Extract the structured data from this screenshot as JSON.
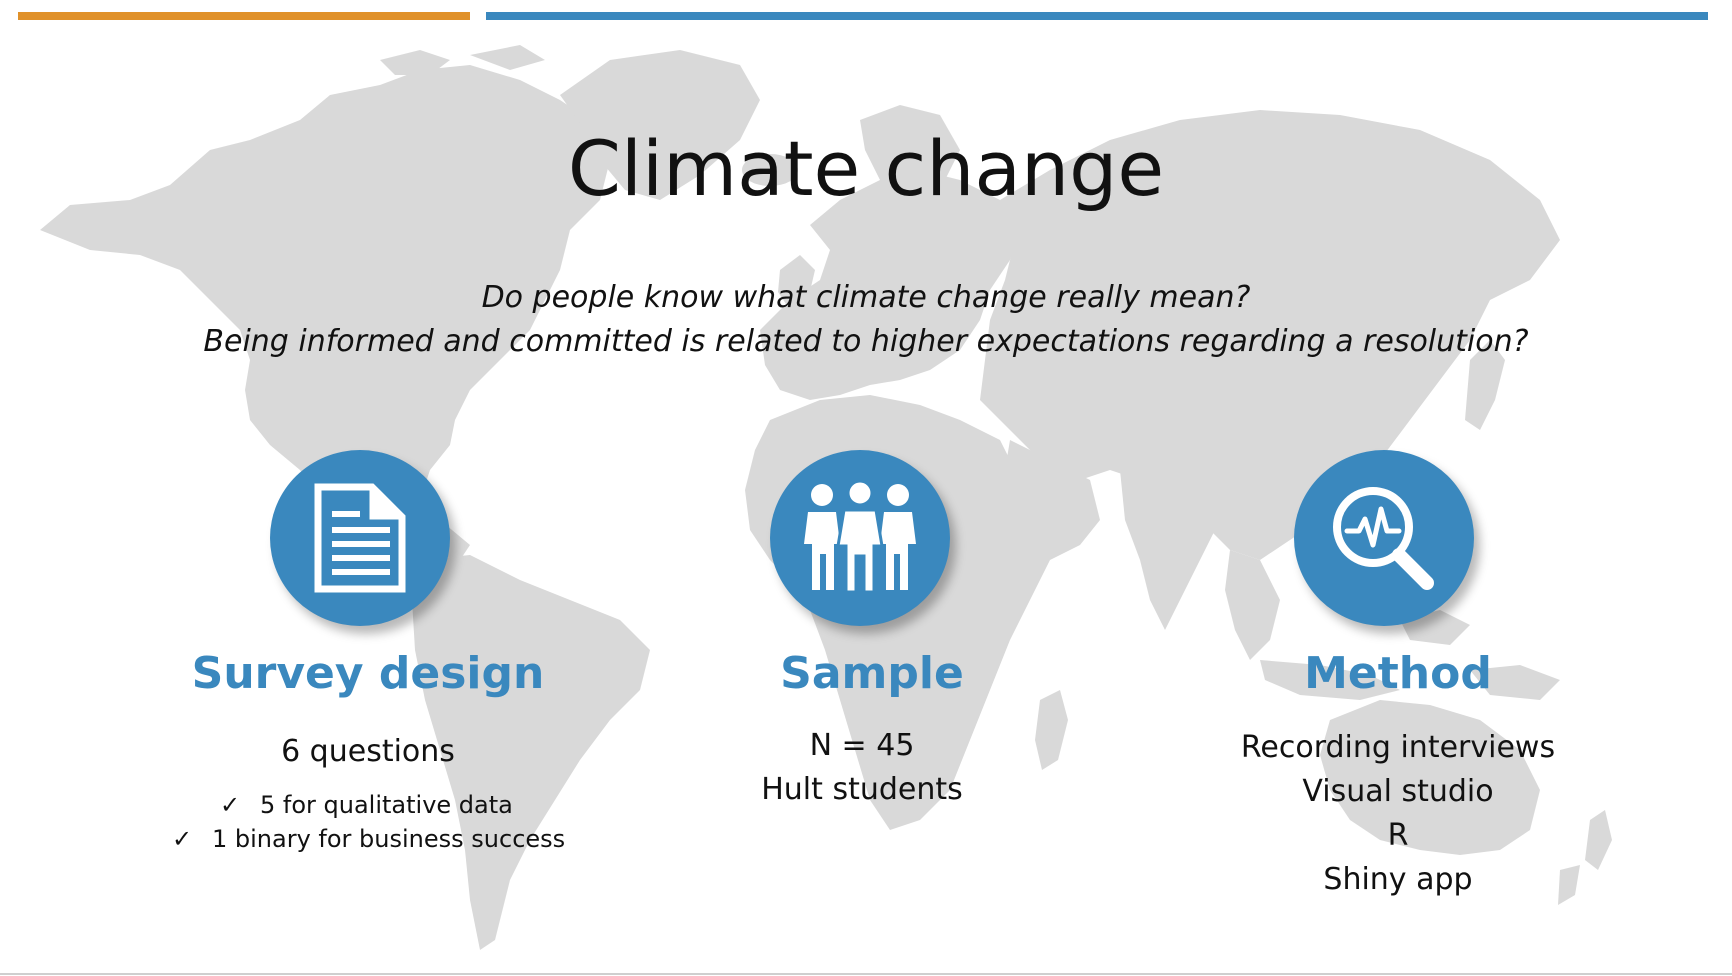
{
  "slide": {
    "title": "Climate change",
    "questions": [
      "Do people know what climate change really mean?",
      "Being informed and committed is related to higher expectations regarding a resolution?"
    ]
  },
  "columns": {
    "survey": {
      "heading": "Survey design",
      "lines": [
        "6 questions"
      ],
      "checklist": [
        "5 for qualitative data",
        "1 binary for business success"
      ],
      "icon": "document-icon"
    },
    "sample": {
      "heading": "Sample",
      "lines": [
        "N = 45",
        "Hult students"
      ],
      "icon": "people-icon"
    },
    "method": {
      "heading": "Method",
      "lines": [
        "Recording interviews",
        "Visual studio",
        "R",
        "Shiny app"
      ],
      "icon": "magnifier-pulse-icon"
    }
  },
  "check_symbol": "✓",
  "colors": {
    "accent_blue": "#3A88BE",
    "accent_orange": "#E0912A",
    "map_gray": "#D9D9D9"
  }
}
